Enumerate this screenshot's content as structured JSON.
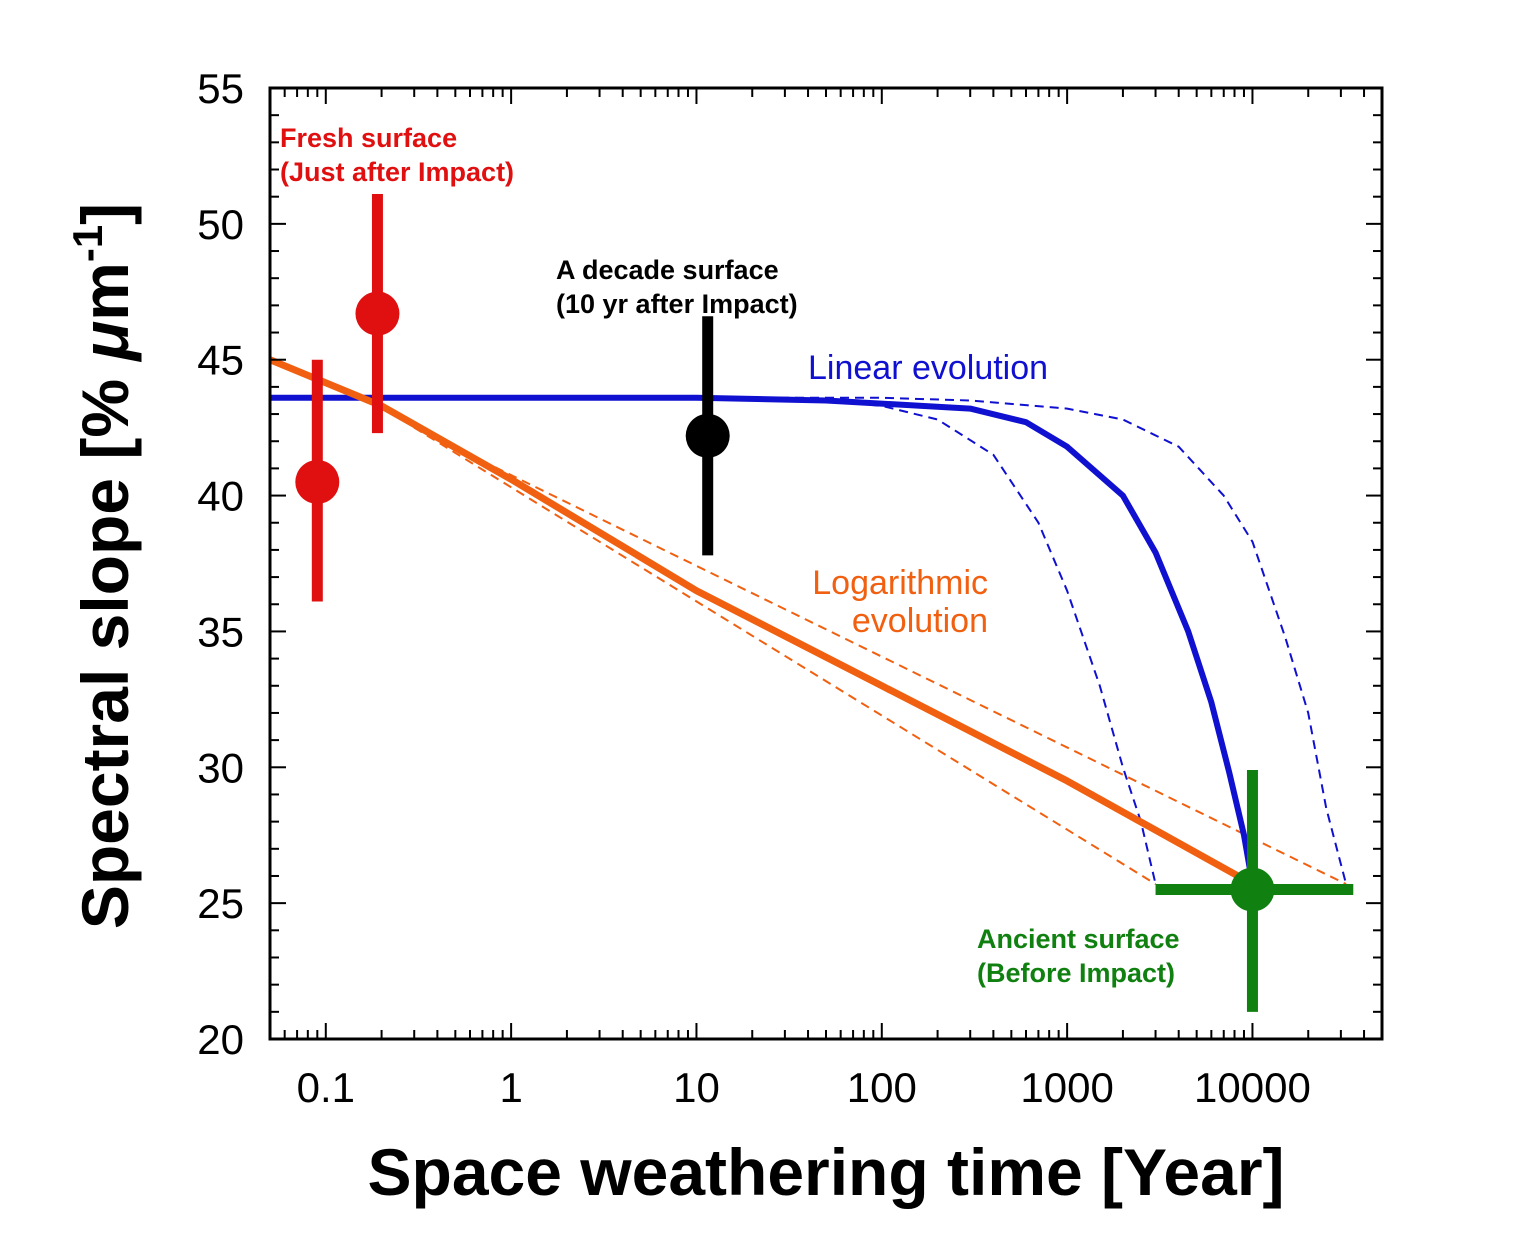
{
  "chart_data": {
    "type": "scatter",
    "xscale": "log",
    "xlim": [
      0.05,
      50000
    ],
    "ylim": [
      20,
      55
    ],
    "xlabel": "Space weathering time [Year]",
    "ylabel_parts": {
      "main": "Spectral slope [% ",
      "mu": "μ",
      "unit": "m",
      "sup": "-1",
      "close": "]"
    },
    "x_ticks": [
      {
        "value": 0.1,
        "label": "0.1"
      },
      {
        "value": 1,
        "label": "1"
      },
      {
        "value": 10,
        "label": "10"
      },
      {
        "value": 100,
        "label": "100"
      },
      {
        "value": 1000,
        "label": "1000"
      },
      {
        "value": 10000,
        "label": "10000"
      }
    ],
    "y_ticks": [
      {
        "value": 20,
        "label": "20"
      },
      {
        "value": 25,
        "label": "25"
      },
      {
        "value": 30,
        "label": "30"
      },
      {
        "value": 35,
        "label": "35"
      },
      {
        "value": 40,
        "label": "40"
      },
      {
        "value": 45,
        "label": "45"
      },
      {
        "value": 50,
        "label": "50"
      },
      {
        "value": 55,
        "label": "55"
      }
    ],
    "grid": false,
    "colors": {
      "fresh": "#e01010",
      "decade": "#000000",
      "ancient": "#108010",
      "linear": "#1010d0",
      "log": "#f06010"
    },
    "points": [
      {
        "group": "fresh",
        "x": 0.09,
        "y": 40.5,
        "y_low": 36.1,
        "y_high": 45.0
      },
      {
        "group": "fresh",
        "x": 0.19,
        "y": 46.7,
        "y_low": 42.3,
        "y_high": 51.1
      },
      {
        "group": "decade",
        "x": 11.5,
        "y": 42.2,
        "y_low": 37.8,
        "y_high": 46.6
      },
      {
        "group": "ancient",
        "x": 10000,
        "y": 25.5,
        "y_low": 21.0,
        "y_high": 29.9,
        "x_low": 3000,
        "x_high": 35000
      }
    ],
    "series": [
      {
        "key": "linear",
        "style": "solid",
        "points": [
          [
            0.05,
            43.6
          ],
          [
            1,
            43.6
          ],
          [
            10,
            43.6
          ],
          [
            50,
            43.5
          ],
          [
            300,
            43.2
          ],
          [
            600,
            42.7
          ],
          [
            1000,
            41.8
          ],
          [
            2000,
            40.0
          ],
          [
            3000,
            37.9
          ],
          [
            4500,
            35.0
          ],
          [
            6000,
            32.4
          ],
          [
            7500,
            29.8
          ],
          [
            9000,
            27.5
          ],
          [
            10000,
            25.7
          ]
        ]
      },
      {
        "key": "linear",
        "style": "dashed",
        "points": [
          [
            0.05,
            43.6
          ],
          [
            20,
            43.6
          ],
          [
            50,
            43.5
          ],
          [
            100,
            43.3
          ],
          [
            200,
            42.8
          ],
          [
            400,
            41.5
          ],
          [
            700,
            39.0
          ],
          [
            1000,
            36.5
          ],
          [
            1500,
            33.0
          ],
          [
            2000,
            30.0
          ],
          [
            2500,
            28.0
          ],
          [
            3000,
            25.7
          ]
        ]
      },
      {
        "key": "linear",
        "style": "dashed",
        "points": [
          [
            0.05,
            43.6
          ],
          [
            100,
            43.6
          ],
          [
            300,
            43.5
          ],
          [
            1000,
            43.2
          ],
          [
            2000,
            42.8
          ],
          [
            4000,
            41.8
          ],
          [
            7000,
            40.0
          ],
          [
            10000,
            38.3
          ],
          [
            15000,
            34.8
          ],
          [
            20000,
            32.0
          ],
          [
            25000,
            28.5
          ],
          [
            32000,
            25.7
          ]
        ]
      },
      {
        "key": "log",
        "style": "solid",
        "points": [
          [
            0.05,
            45.0
          ],
          [
            0.2,
            43.3
          ],
          [
            1,
            40.6
          ],
          [
            10,
            36.5
          ],
          [
            100,
            33.0
          ],
          [
            1000,
            29.5
          ],
          [
            10000,
            25.7
          ]
        ]
      },
      {
        "key": "log",
        "style": "dashed",
        "points": [
          [
            0.3,
            42.5
          ],
          [
            3000,
            25.7
          ]
        ]
      },
      {
        "key": "log",
        "style": "dashed",
        "points": [
          [
            0.3,
            42.5
          ],
          [
            32000,
            25.7
          ]
        ]
      }
    ],
    "annotations": [
      {
        "key": "fresh",
        "style": "bold",
        "lines": [
          "Fresh surface",
          "(Just after Impact)"
        ]
      },
      {
        "key": "decade",
        "style": "bold",
        "lines": [
          "A decade surface",
          "(10 yr after Impact)"
        ]
      },
      {
        "key": "ancient",
        "style": "bold",
        "lines": [
          "Ancient surface",
          "(Before Impact)"
        ]
      },
      {
        "key": "linear",
        "style": "plain",
        "lines": [
          "Linear evolution"
        ]
      },
      {
        "key": "log",
        "style": "plain",
        "lines": [
          "Logarithmic",
          "evolution"
        ]
      }
    ]
  }
}
